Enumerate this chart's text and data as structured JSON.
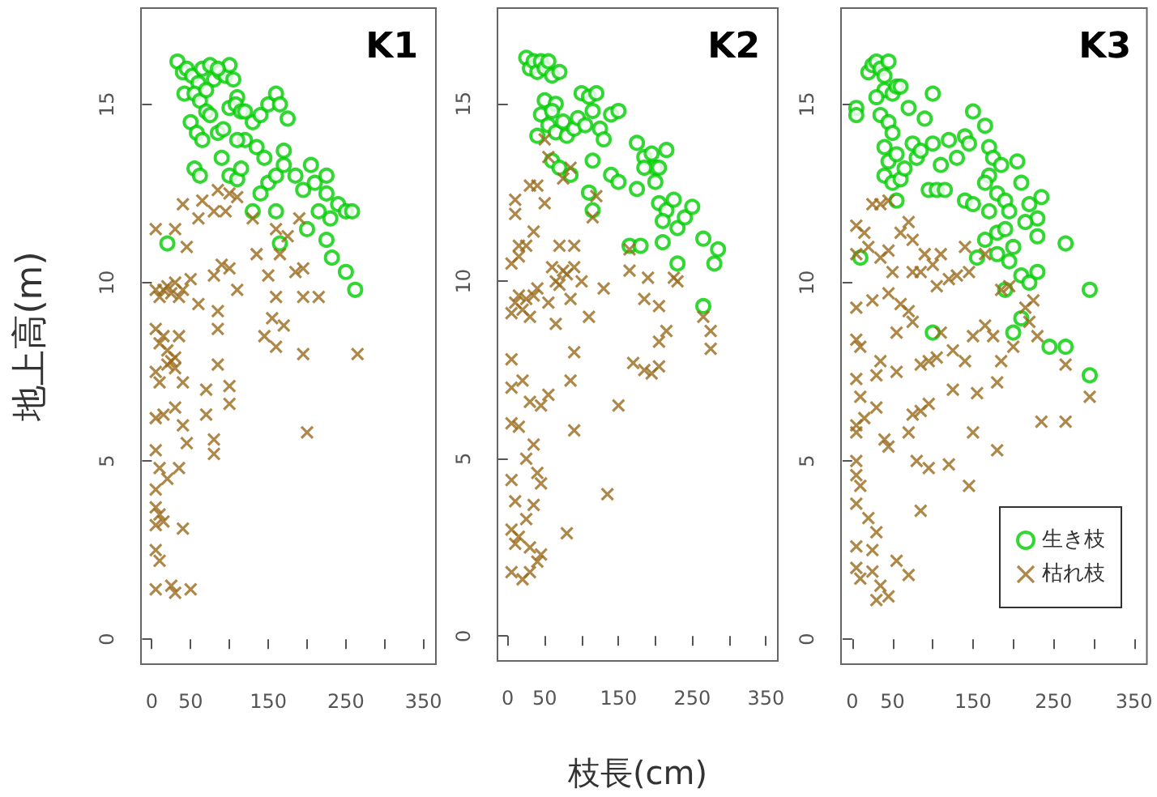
{
  "chart_data": [
    {
      "type": "scatter",
      "title": "K1",
      "ylabel": "地上高(m)",
      "xlim": [
        -14,
        366
      ],
      "ylim": [
        -0.7,
        17.7
      ],
      "xticks": [
        0,
        50,
        {
          "value": 100,
          "label": null
        },
        150,
        {
          "value": 200,
          "label": null
        },
        250,
        {
          "value": 300,
          "label": null
        },
        350
      ],
      "yticks": [
        0,
        5,
        10,
        15
      ],
      "legend": false,
      "series": [
        {
          "color": "#00cd00",
          "marker": "circle",
          "x": [
            33,
            40,
            45,
            52,
            60,
            65,
            75,
            80,
            88,
            95,
            100,
            105,
            110,
            42,
            55,
            62,
            70,
            50,
            58,
            65,
            75,
            85,
            92,
            100,
            108,
            115,
            55,
            62,
            90,
            100,
            110,
            115,
            120,
            130,
            140,
            150,
            160,
            165,
            175,
            135,
            145,
            150,
            140,
            160,
            170,
            170,
            185,
            195,
            205,
            210,
            225,
            225,
            230,
            240,
            250,
            258,
            200,
            215,
            225,
            232,
            250,
            262,
            160,
            165,
            20,
            130,
            110,
            120,
            85,
            70
          ],
          "values": [
            16.2,
            15.9,
            16,
            15.8,
            15.6,
            16,
            16.1,
            15.7,
            15.9,
            15.8,
            16.1,
            15.7,
            15.2,
            15.3,
            15.3,
            15.1,
            14.8,
            14.5,
            14.2,
            14,
            14.7,
            14.2,
            14.3,
            14.9,
            15,
            14.8,
            13.2,
            13,
            13.5,
            13,
            12.9,
            13.2,
            14,
            14.5,
            14.7,
            15,
            15.3,
            15,
            14.6,
            13.8,
            13.5,
            12.8,
            12.5,
            13,
            13.3,
            13.7,
            13,
            12.6,
            13.3,
            12.8,
            13,
            12.5,
            11.8,
            12.2,
            12,
            12,
            11.5,
            12,
            11.2,
            10.7,
            10.3,
            9.8,
            12,
            11.1,
            11.1,
            12,
            14,
            14.8,
            16,
            15.4
          ]
        },
        {
          "color": "#9a6a1c",
          "marker": "cross",
          "x": [
            5,
            30,
            40,
            45,
            60,
            65,
            80,
            85,
            95,
            100,
            110,
            130,
            135,
            160,
            175,
            190,
            165,
            80,
            90,
            100,
            110,
            50,
            60,
            5,
            10,
            15,
            20,
            25,
            30,
            35,
            40,
            5,
            10,
            15,
            20,
            25,
            30,
            35,
            5,
            10,
            20,
            30,
            40,
            85,
            85,
            150,
            160,
            155,
            145,
            160,
            170,
            185,
            195,
            195,
            215,
            195,
            200,
            265,
            85,
            70,
            70,
            100,
            100,
            5,
            15,
            30,
            40,
            45,
            80,
            80,
            5,
            10,
            20,
            35,
            5,
            5,
            10,
            15,
            5,
            40,
            5,
            10,
            5,
            25,
            30,
            50
          ],
          "values": [
            11.5,
            11.5,
            12.2,
            11,
            11.8,
            12.3,
            12,
            12.6,
            12,
            12.5,
            12.4,
            11.8,
            10.8,
            11.5,
            11.3,
            11.8,
            10.8,
            10.2,
            10.5,
            10.4,
            9.8,
            10.1,
            9.4,
            9.8,
            9.6,
            9.8,
            9.9,
            9.7,
            10,
            9.6,
            9.8,
            8.7,
            8.3,
            8.5,
            8.1,
            7.8,
            7.6,
            8.5,
            7.5,
            7.2,
            7.7,
            7.9,
            7.2,
            9.2,
            8.7,
            10.2,
            9.6,
            9,
            8.5,
            8.2,
            8.8,
            10.3,
            10.4,
            9.6,
            9.6,
            8,
            5.8,
            8,
            7.7,
            7,
            6.3,
            7.1,
            6.6,
            6.2,
            6.3,
            6.5,
            6,
            5.5,
            5.6,
            5.2,
            5.3,
            4.8,
            4.5,
            4.8,
            4.2,
            3.7,
            3.5,
            3.3,
            3.2,
            3.1,
            2.5,
            2.2,
            1.4,
            1.5,
            1.3,
            1.4
          ]
        }
      ]
    },
    {
      "type": "scatter",
      "title": "K2",
      "xlabel": "枝長(cm)",
      "xlim": [
        -14,
        366
      ],
      "ylim": [
        -0.7,
        17.7
      ],
      "xticks": [
        0,
        50,
        {
          "value": 100,
          "label": null
        },
        150,
        {
          "value": 200,
          "label": null
        },
        250,
        {
          "value": 300,
          "label": null
        },
        350
      ],
      "yticks": [
        0,
        5,
        10,
        15
      ],
      "legend": false,
      "series": [
        {
          "color": "#00cd00",
          "marker": "circle",
          "x": [
            25,
            30,
            35,
            40,
            45,
            50,
            55,
            60,
            70,
            50,
            65,
            45,
            55,
            65,
            75,
            80,
            90,
            95,
            100,
            110,
            120,
            115,
            105,
            125,
            130,
            140,
            150,
            60,
            70,
            85,
            115,
            140,
            150,
            110,
            115,
            175,
            185,
            195,
            200,
            215,
            175,
            185,
            205,
            200,
            205,
            215,
            225,
            230,
            240,
            250,
            210,
            165,
            180,
            210,
            230,
            265,
            280,
            285,
            265,
            40,
            60
          ],
          "values": [
            16.3,
            16,
            16.2,
            15.9,
            16.2,
            16,
            16.2,
            15.8,
            15.9,
            15.1,
            15,
            14.7,
            14.4,
            14.2,
            14.5,
            14.1,
            14.3,
            14.6,
            15.3,
            15.2,
            15.3,
            14.8,
            14.4,
            14.3,
            14,
            14.7,
            14.8,
            13.4,
            13.2,
            13,
            13.4,
            13,
            12.8,
            12.5,
            12,
            13.9,
            13.5,
            13.6,
            13.2,
            13.7,
            12.6,
            13.2,
            13.2,
            12.8,
            12.2,
            12,
            12.3,
            11.5,
            11.8,
            12.1,
            11.7,
            11,
            11,
            11.1,
            10.5,
            11.2,
            10.5,
            10.9,
            9.3,
            14.1,
            14.8
          ]
        },
        {
          "color": "#9a6a1c",
          "marker": "cross",
          "x": [
            50,
            55,
            75,
            85,
            120,
            115,
            30,
            40,
            10,
            10,
            35,
            50,
            15,
            25,
            5,
            15,
            60,
            65,
            70,
            75,
            80,
            90,
            100,
            70,
            90,
            5,
            10,
            15,
            20,
            25,
            30,
            35,
            40,
            55,
            65,
            85,
            110,
            130,
            165,
            165,
            185,
            190,
            205,
            225,
            230,
            215,
            205,
            265,
            275,
            275,
            170,
            185,
            195,
            205,
            90,
            85,
            5,
            5,
            20,
            5,
            15,
            30,
            45,
            55,
            90,
            150,
            25,
            35,
            40,
            45,
            5,
            10,
            25,
            35,
            5,
            15,
            10,
            30,
            45,
            80,
            135,
            5,
            20,
            30,
            40
          ],
          "values": [
            14,
            13.5,
            12.9,
            13.2,
            12.4,
            11.8,
            12.7,
            12.7,
            12.3,
            11.9,
            11.4,
            12.2,
            11,
            11,
            10.5,
            10.7,
            10.4,
            10,
            9.9,
            10.3,
            10.2,
            10.4,
            10,
            11,
            11,
            9.1,
            9.4,
            9.6,
            9.2,
            9.5,
            9,
            9.6,
            9.8,
            9.4,
            8.8,
            9.5,
            9,
            9.8,
            10.3,
            10.9,
            9.5,
            10.1,
            9.3,
            10.1,
            10,
            8.6,
            8.3,
            9,
            8.6,
            8.1,
            7.7,
            7.5,
            7.4,
            7.6,
            8,
            7.2,
            7.8,
            7,
            7.2,
            6,
            5.9,
            6.6,
            6.5,
            6.8,
            5.8,
            6.5,
            5,
            5.4,
            4.6,
            4.3,
            4.4,
            3.8,
            3.3,
            3.7,
            3,
            2.8,
            2.6,
            2.5,
            2.3,
            2.9,
            4,
            1.8,
            1.6,
            1.8,
            2.1
          ]
        }
      ]
    },
    {
      "type": "scatter",
      "title": "K3",
      "xlim": [
        -14,
        366
      ],
      "ylim": [
        -0.7,
        17.7
      ],
      "xticks": [
        0,
        50,
        {
          "value": 100,
          "label": null
        },
        150,
        {
          "value": 200,
          "label": null
        },
        250,
        {
          "value": 300,
          "label": null
        },
        350
      ],
      "yticks": [
        0,
        5,
        10,
        15
      ],
      "legend": "bottom right",
      "series": [
        {
          "name": "生き枝",
          "color": "#00cd00",
          "marker": "circle",
          "x": [
            5,
            5,
            20,
            25,
            30,
            35,
            40,
            45,
            40,
            50,
            55,
            60,
            30,
            35,
            45,
            50,
            40,
            45,
            55,
            40,
            50,
            60,
            65,
            55,
            70,
            75,
            80,
            85,
            90,
            100,
            100,
            110,
            120,
            130,
            140,
            145,
            95,
            105,
            115,
            140,
            150,
            150,
            165,
            170,
            175,
            170,
            185,
            180,
            190,
            165,
            170,
            165,
            180,
            190,
            195,
            205,
            210,
            220,
            230,
            235,
            215,
            230,
            200,
            210,
            220,
            230,
            180,
            155,
            195,
            190,
            210,
            200,
            245,
            265,
            265,
            295,
            295,
            10,
            100
          ],
          "values": [
            14.9,
            14.7,
            15.9,
            16.1,
            16.2,
            16,
            15.8,
            16.2,
            15.4,
            15.3,
            15.5,
            15.5,
            15.2,
            14.7,
            14.5,
            14.2,
            13.8,
            13.4,
            13.6,
            13,
            12.8,
            12.9,
            13.2,
            12.3,
            14.9,
            13.9,
            13.5,
            13.7,
            14.6,
            13.9,
            15.3,
            13.3,
            14,
            13.5,
            14.1,
            13.9,
            12.6,
            12.6,
            12.6,
            12.3,
            12.2,
            14.8,
            14.4,
            13.8,
            13.5,
            13,
            13.3,
            12.5,
            12.3,
            12.8,
            12,
            11.2,
            11.4,
            11.5,
            12,
            13.4,
            12.8,
            12.2,
            11.8,
            12.4,
            11.7,
            11.3,
            11,
            10.2,
            10,
            10.3,
            10.8,
            10.7,
            10.6,
            9.8,
            9,
            8.6,
            8.2,
            11.1,
            8.2,
            9.8,
            7.4,
            10.7,
            8.6
          ]
        },
        {
          "name": "枯れ枝",
          "color": "#9a6a1c",
          "marker": "cross",
          "x": [
            25,
            35,
            45,
            60,
            70,
            75,
            5,
            15,
            20,
            35,
            45,
            50,
            5,
            75,
            85,
            90,
            100,
            110,
            105,
            120,
            130,
            140,
            145,
            165,
            185,
            195,
            215,
            225,
            220,
            230,
            200,
            165,
            150,
            175,
            185,
            180,
            265,
            295,
            235,
            265,
            5,
            25,
            45,
            60,
            70,
            55,
            75,
            5,
            10,
            35,
            30,
            55,
            85,
            95,
            105,
            110,
            125,
            140,
            125,
            155,
            5,
            10,
            15,
            5,
            5,
            30,
            40,
            45,
            75,
            85,
            95,
            70,
            80,
            95,
            85,
            120,
            145,
            150,
            180,
            5,
            5,
            10,
            5,
            20,
            30,
            25,
            5,
            5,
            10,
            25,
            35,
            45,
            30,
            55,
            70
          ],
          "values": [
            12.2,
            12.2,
            12.3,
            11.4,
            11.7,
            11.2,
            11.6,
            11.4,
            11,
            10.7,
            10.9,
            10.3,
            10.8,
            10.3,
            10.3,
            10.8,
            10.5,
            10.8,
            9.9,
            10.1,
            10.2,
            11,
            10.3,
            10.8,
            9.8,
            9.9,
            9.3,
            9.5,
            8.9,
            8.5,
            8.2,
            8.8,
            8.5,
            8.5,
            7.8,
            7.2,
            7.7,
            6.8,
            6.1,
            6.1,
            9.3,
            9.5,
            9.7,
            9.4,
            9.2,
            8.6,
            8.9,
            8.4,
            8.2,
            7.8,
            7.4,
            7.5,
            7.7,
            7.8,
            7.9,
            8.6,
            8.1,
            7.8,
            7,
            6.9,
            7.3,
            6.8,
            6.2,
            6,
            5.8,
            6.5,
            5.6,
            5.4,
            6.3,
            6.4,
            6.6,
            5.8,
            5,
            4.8,
            3.6,
            4.9,
            4.3,
            5.8,
            5.3,
            5,
            4.6,
            4.3,
            3.8,
            3.4,
            3,
            2.5,
            2.6,
            2,
            1.7,
            1.9,
            1.5,
            1.2,
            1.1,
            2.2,
            1.8
          ]
        }
      ]
    }
  ]
}
